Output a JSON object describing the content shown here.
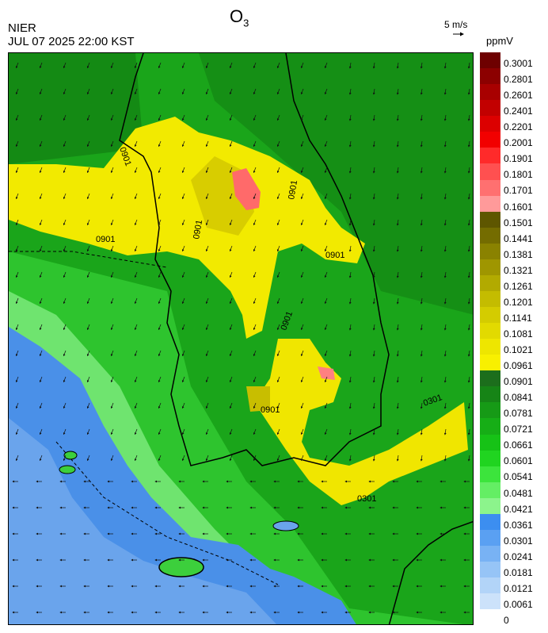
{
  "header": {
    "source": "NIER",
    "datetime": "JUL 07 2025 22:00 KST",
    "title_main": "O",
    "title_sub": "3"
  },
  "wind_reference": {
    "label": "5 m/s",
    "arrow_icon": "right-arrow-icon"
  },
  "unit": "ppmV",
  "colorbar": {
    "labels": [
      "0.3001",
      "0.2801",
      "0.2601",
      "0.2401",
      "0.2201",
      "0.2001",
      "0.1901",
      "0.1801",
      "0.1701",
      "0.1601",
      "0.1501",
      "0.1441",
      "0.1381",
      "0.1321",
      "0.1261",
      "0.1201",
      "0.1141",
      "0.1081",
      "0.1021",
      "0.0961",
      "0.0901",
      "0.0841",
      "0.0781",
      "0.0721",
      "0.0661",
      "0.0601",
      "0.0541",
      "0.0481",
      "0.0421",
      "0.0361",
      "0.0301",
      "0.0241",
      "0.0181",
      "0.0121",
      "0.0061",
      "0"
    ],
    "colors": [
      "#6e0000",
      "#8c0000",
      "#a80000",
      "#c20000",
      "#dc0000",
      "#f20000",
      "#ff2a2a",
      "#ff5050",
      "#ff7070",
      "#ff9a9a",
      "#5e5600",
      "#746c00",
      "#8a8200",
      "#9f9600",
      "#b2aa00",
      "#c4bc00",
      "#d4cc00",
      "#e2da00",
      "#eee600",
      "#f8f000",
      "#1c6e1c",
      "#168416",
      "#169a16",
      "#16ae16",
      "#16c216",
      "#20d420",
      "#3ce43c",
      "#64ee64",
      "#8cf48c",
      "#3c8ef0",
      "#5aa0f2",
      "#78b2f4",
      "#96c4f6",
      "#b2d4f8",
      "#cce2fa"
    ]
  },
  "map": {
    "contour_labels": [
      "0901",
      "0901",
      "0901",
      "0901",
      "0901",
      "0901",
      "0901",
      "0301",
      "0301"
    ]
  }
}
